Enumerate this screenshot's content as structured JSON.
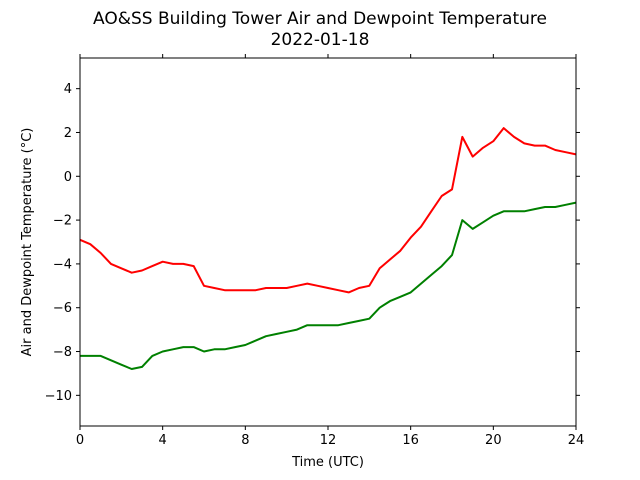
{
  "chart_data": {
    "type": "line",
    "title": "AO&SS Building Tower Air and Dewpoint Temperature",
    "subtitle": "2022-01-18",
    "xlabel": "Time (UTC)",
    "ylabel": "Air and Dewpoint Temperature (°C)",
    "xlim": [
      0,
      24
    ],
    "ylim": [
      -11.4,
      5.4
    ],
    "xticks": [
      0,
      4,
      8,
      12,
      16,
      20,
      24
    ],
    "yticks": [
      -10,
      -8,
      -6,
      -4,
      -2,
      0,
      2,
      4
    ],
    "ytick_labels": [
      "−10",
      "−8",
      "−6",
      "−4",
      "−2",
      "0",
      "2",
      "4"
    ],
    "grid": false,
    "legend": "none",
    "series": [
      {
        "color": "#ff0000",
        "x": [
          0,
          0.5,
          1,
          1.5,
          2,
          2.5,
          3,
          3.5,
          4,
          4.5,
          5,
          5.5,
          6,
          6.5,
          7,
          7.5,
          8,
          8.5,
          9,
          9.5,
          10,
          10.5,
          11,
          11.5,
          12,
          12.5,
          13,
          13.5,
          14,
          14.5,
          15,
          15.5,
          16,
          16.5,
          17,
          17.5,
          18,
          18.5,
          19,
          19.5,
          20,
          20.5,
          21,
          21.5,
          22,
          22.5,
          23,
          23.5,
          24
        ],
        "values": [
          -2.9,
          -3.1,
          -3.5,
          -4.0,
          -4.2,
          -4.4,
          -4.3,
          -4.1,
          -3.9,
          -4.0,
          -4.0,
          -4.1,
          -5.0,
          -5.1,
          -5.2,
          -5.2,
          -5.2,
          -5.2,
          -5.1,
          -5.1,
          -5.1,
          -5.0,
          -4.9,
          -5.0,
          -5.1,
          -5.2,
          -5.3,
          -5.1,
          -5.0,
          -4.2,
          -3.8,
          -3.4,
          -2.8,
          -2.3,
          -1.6,
          -0.9,
          -0.6,
          1.8,
          0.9,
          1.3,
          1.6,
          2.2,
          1.8,
          1.5,
          1.4,
          1.4,
          1.2,
          1.1,
          1.0
        ]
      },
      {
        "color": "#008000",
        "x": [
          0,
          0.5,
          1,
          1.5,
          2,
          2.5,
          3,
          3.5,
          4,
          4.5,
          5,
          5.5,
          6,
          6.5,
          7,
          7.5,
          8,
          8.5,
          9,
          9.5,
          10,
          10.5,
          11,
          11.5,
          12,
          12.5,
          13,
          13.5,
          14,
          14.5,
          15,
          15.5,
          16,
          16.5,
          17,
          17.5,
          18,
          18.5,
          19,
          19.5,
          20,
          20.5,
          21,
          21.5,
          22,
          22.5,
          23,
          23.5,
          24
        ],
        "values": [
          -8.2,
          -8.2,
          -8.2,
          -8.4,
          -8.6,
          -8.8,
          -8.7,
          -8.2,
          -8.0,
          -7.9,
          -7.8,
          -7.8,
          -8.0,
          -7.9,
          -7.9,
          -7.8,
          -7.7,
          -7.5,
          -7.3,
          -7.2,
          -7.1,
          -7.0,
          -6.8,
          -6.8,
          -6.8,
          -6.8,
          -6.7,
          -6.6,
          -6.5,
          -6.0,
          -5.7,
          -5.5,
          -5.3,
          -4.9,
          -4.5,
          -4.1,
          -3.6,
          -2.0,
          -2.4,
          -2.1,
          -1.8,
          -1.6,
          -1.6,
          -1.6,
          -1.5,
          -1.4,
          -1.4,
          -1.3,
          -1.2
        ]
      }
    ]
  }
}
